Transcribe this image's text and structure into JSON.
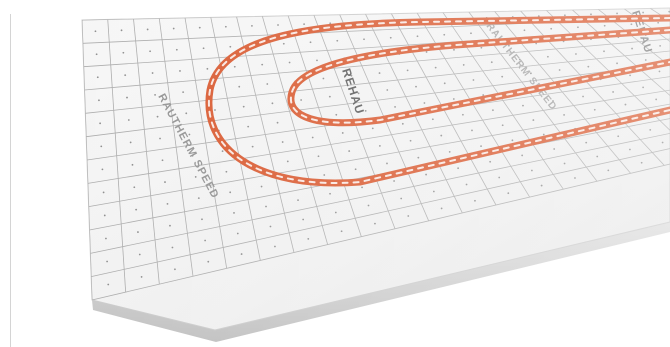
{
  "photo": {
    "subject": "underfloor-heating-panel",
    "panel_print_text": "RAUTHERM SPEED",
    "brand_mark": "REHAU",
    "colors": {
      "background": "#ffffff",
      "panel": "#f3f3f3",
      "grid": "#9b9b9b",
      "pipe_main": "#e0622b",
      "pipe_stripe": "#ffffff",
      "edge_shadow": "#cfcfcf"
    }
  }
}
